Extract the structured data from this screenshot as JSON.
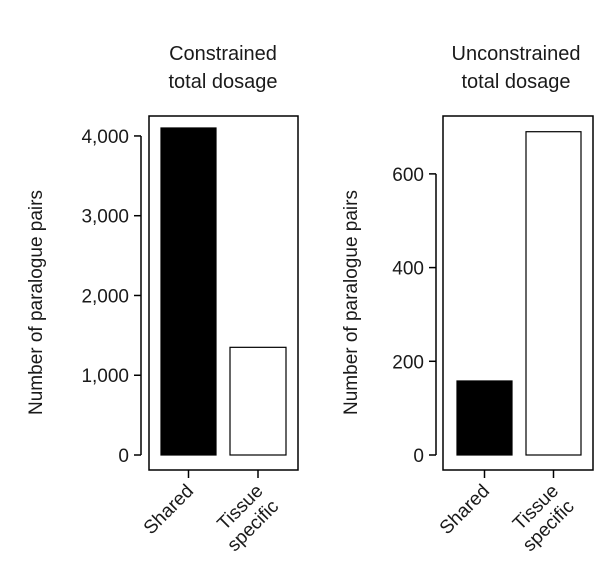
{
  "chart_data": [
    {
      "type": "bar",
      "title_lines": [
        "Constrained",
        "total dosage"
      ],
      "ylabel": "Number of paralogue pairs",
      "categories": [
        [
          "Shared"
        ],
        [
          "Tissue",
          "specific"
        ]
      ],
      "values": [
        4100,
        1350
      ],
      "bar_fills": [
        "#000000",
        "#ffffff"
      ],
      "ylim": [
        0,
        4200
      ],
      "yticks": [
        0,
        1000,
        2000,
        3000,
        4000
      ],
      "ytick_labels": [
        "0",
        "1,000",
        "2,000",
        "3,000",
        "4,000"
      ],
      "grid": false
    },
    {
      "type": "bar",
      "title_lines": [
        "Unconstrained",
        "total dosage"
      ],
      "ylabel": "Number of paralogue pairs",
      "categories": [
        [
          "Shared"
        ],
        [
          "Tissue",
          "specific"
        ]
      ],
      "values": [
        158,
        690
      ],
      "bar_fills": [
        "#000000",
        "#ffffff"
      ],
      "ylim": [
        0,
        715
      ],
      "yticks": [
        0,
        200,
        400,
        600
      ],
      "ytick_labels": [
        "0",
        "200",
        "400",
        "600"
      ],
      "grid": false
    }
  ]
}
